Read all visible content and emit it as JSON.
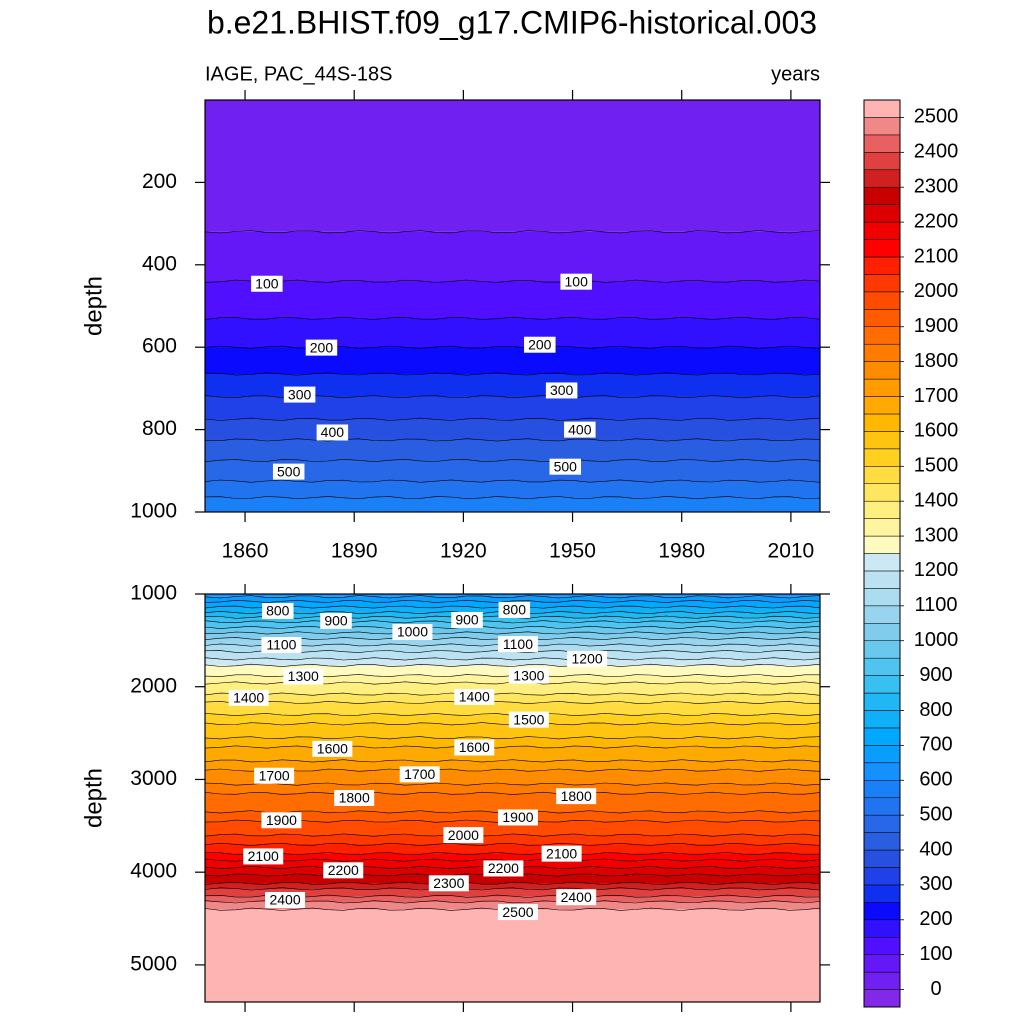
{
  "chart_data": [
    {
      "type": "contour",
      "title": "b.e21.BHIST.f09_g17.CMIP6-historical.003",
      "subtitle": "IAGE, PAC_44S-18S",
      "units": "years",
      "ylabel": "depth",
      "xlim": [
        1849,
        2018
      ],
      "xticks": [
        1860,
        1890,
        1920,
        1950,
        1980,
        2010
      ],
      "ylim": [
        0,
        1000
      ],
      "yticks": [
        200,
        400,
        600,
        800,
        1000
      ],
      "y_reversed": true,
      "contours": [
        {
          "level": 50,
          "depth": 320
        },
        {
          "level": 100,
          "depth": 440
        },
        {
          "level": 150,
          "depth": 530
        },
        {
          "level": 200,
          "depth": 600
        },
        {
          "level": 250,
          "depth": 665
        },
        {
          "level": 300,
          "depth": 720
        },
        {
          "level": 350,
          "depth": 775
        },
        {
          "level": 400,
          "depth": 825
        },
        {
          "level": 450,
          "depth": 875
        },
        {
          "level": 500,
          "depth": 925
        },
        {
          "level": 550,
          "depth": 965
        }
      ],
      "contour_labels": [
        {
          "value": 100,
          "x": 1866,
          "y": 446
        },
        {
          "value": 100,
          "x": 1951,
          "y": 441
        },
        {
          "value": 200,
          "x": 1881,
          "y": 601
        },
        {
          "value": 200,
          "x": 1941,
          "y": 594
        },
        {
          "value": 300,
          "x": 1875,
          "y": 715
        },
        {
          "value": 300,
          "x": 1947,
          "y": 705
        },
        {
          "value": 400,
          "x": 1884,
          "y": 807
        },
        {
          "value": 400,
          "x": 1952,
          "y": 800
        },
        {
          "value": 500,
          "x": 1872,
          "y": 902
        },
        {
          "value": 500,
          "x": 1948,
          "y": 890
        }
      ],
      "colorbar": {
        "lim": [
          -50,
          2550
        ],
        "ticks": [
          0,
          100,
          200,
          300,
          400,
          500,
          600,
          700,
          800,
          900,
          1000,
          1100,
          1200,
          1300,
          1400,
          1500,
          1600,
          1700,
          1800,
          1900,
          2000,
          2100,
          2200,
          2300,
          2400,
          2500
        ],
        "colors": [
          "#8228e8",
          "#7020f0",
          "#6418f8",
          "#5010ff",
          "#3010ff",
          "#0a0aff",
          "#1030f0",
          "#2040e8",
          "#2850e0",
          "#2a5ee0",
          "#2868e8",
          "#2074f0",
          "#1a80f8",
          "#1490ff",
          "#0a9cff",
          "#00a8ff",
          "#10b0f8",
          "#20b8f4",
          "#38c0f0",
          "#50c4f0",
          "#68c8ee",
          "#80ccec",
          "#98d4ee",
          "#acdcf0",
          "#bce2f2",
          "#cce8f4",
          "#fffac0",
          "#fff4a0",
          "#ffee80",
          "#ffe660",
          "#ffdc40",
          "#ffd020",
          "#ffc410",
          "#ffb800",
          "#ffaa00",
          "#ff9c00",
          "#ff8c00",
          "#ff7c00",
          "#ff6c00",
          "#ff5c00",
          "#ff4c00",
          "#ff3800",
          "#ff2000",
          "#ff0000",
          "#f00000",
          "#dc0000",
          "#c80000",
          "#d02020",
          "#e04040",
          "#e86060",
          "#f08888",
          "#ffb4b4"
        ]
      }
    },
    {
      "type": "contour",
      "ylabel": "depth",
      "xlim": [
        1849,
        2018
      ],
      "ylim": [
        1000,
        5400
      ],
      "yticks": [
        1000,
        2000,
        3000,
        4000,
        5000
      ],
      "y_reversed": true,
      "contours": [
        {
          "level": 650,
          "depth": 1030
        },
        {
          "level": 700,
          "depth": 1080
        },
        {
          "level": 750,
          "depth": 1140
        },
        {
          "level": 800,
          "depth": 1200
        },
        {
          "level": 850,
          "depth": 1250
        },
        {
          "level": 900,
          "depth": 1300
        },
        {
          "level": 950,
          "depth": 1360
        },
        {
          "level": 1000,
          "depth": 1420
        },
        {
          "level": 1050,
          "depth": 1480
        },
        {
          "level": 1100,
          "depth": 1550
        },
        {
          "level": 1150,
          "depth": 1620
        },
        {
          "level": 1200,
          "depth": 1700
        },
        {
          "level": 1250,
          "depth": 1770
        },
        {
          "level": 1300,
          "depth": 1880
        },
        {
          "level": 1350,
          "depth": 1960
        },
        {
          "level": 1400,
          "depth": 2080
        },
        {
          "level": 1450,
          "depth": 2170
        },
        {
          "level": 1500,
          "depth": 2300
        },
        {
          "level": 1550,
          "depth": 2400
        },
        {
          "level": 1600,
          "depth": 2550
        },
        {
          "level": 1650,
          "depth": 2650
        },
        {
          "level": 1700,
          "depth": 2800
        },
        {
          "level": 1750,
          "depth": 2900
        },
        {
          "level": 1800,
          "depth": 3050
        },
        {
          "level": 1850,
          "depth": 3150
        },
        {
          "level": 1900,
          "depth": 3350
        },
        {
          "level": 1950,
          "depth": 3450
        },
        {
          "level": 2000,
          "depth": 3600
        },
        {
          "level": 2050,
          "depth": 3700
        },
        {
          "level": 2100,
          "depth": 3800
        },
        {
          "level": 2150,
          "depth": 3870
        },
        {
          "level": 2200,
          "depth": 3950
        },
        {
          "level": 2250,
          "depth": 4030
        },
        {
          "level": 2300,
          "depth": 4120
        },
        {
          "level": 2350,
          "depth": 4180
        },
        {
          "level": 2400,
          "depth": 4260
        },
        {
          "level": 2450,
          "depth": 4320
        },
        {
          "level": 2500,
          "depth": 4400
        }
      ],
      "contour_labels": [
        {
          "value": 800,
          "x": 1869,
          "y": 1183
        },
        {
          "value": 900,
          "x": 1885,
          "y": 1290
        },
        {
          "value": 1000,
          "x": 1906,
          "y": 1410
        },
        {
          "value": 900,
          "x": 1921,
          "y": 1280
        },
        {
          "value": 800,
          "x": 1934,
          "y": 1172
        },
        {
          "value": 1100,
          "x": 1870,
          "y": 1550
        },
        {
          "value": 1100,
          "x": 1935,
          "y": 1540
        },
        {
          "value": 1200,
          "x": 1954,
          "y": 1700
        },
        {
          "value": 1300,
          "x": 1876,
          "y": 1890
        },
        {
          "value": 1300,
          "x": 1938,
          "y": 1880
        },
        {
          "value": 1400,
          "x": 1861,
          "y": 2120
        },
        {
          "value": 1400,
          "x": 1923,
          "y": 2110
        },
        {
          "value": 1500,
          "x": 1938,
          "y": 2355
        },
        {
          "value": 1600,
          "x": 1884,
          "y": 2670
        },
        {
          "value": 1600,
          "x": 1923,
          "y": 2655
        },
        {
          "value": 1700,
          "x": 1868,
          "y": 2960
        },
        {
          "value": 1700,
          "x": 1908,
          "y": 2945
        },
        {
          "value": 1800,
          "x": 1890,
          "y": 3200
        },
        {
          "value": 1800,
          "x": 1951,
          "y": 3180
        },
        {
          "value": 1900,
          "x": 1870,
          "y": 3440
        },
        {
          "value": 1900,
          "x": 1935,
          "y": 3410
        },
        {
          "value": 2000,
          "x": 1920,
          "y": 3600
        },
        {
          "value": 2100,
          "x": 1865,
          "y": 3830
        },
        {
          "value": 2100,
          "x": 1947,
          "y": 3800
        },
        {
          "value": 2200,
          "x": 1887,
          "y": 3980
        },
        {
          "value": 2200,
          "x": 1931,
          "y": 3960
        },
        {
          "value": 2300,
          "x": 1916,
          "y": 4120
        },
        {
          "value": 2400,
          "x": 1871,
          "y": 4300
        },
        {
          "value": 2400,
          "x": 1951,
          "y": 4270
        },
        {
          "value": 2500,
          "x": 1935,
          "y": 4430
        }
      ]
    }
  ]
}
